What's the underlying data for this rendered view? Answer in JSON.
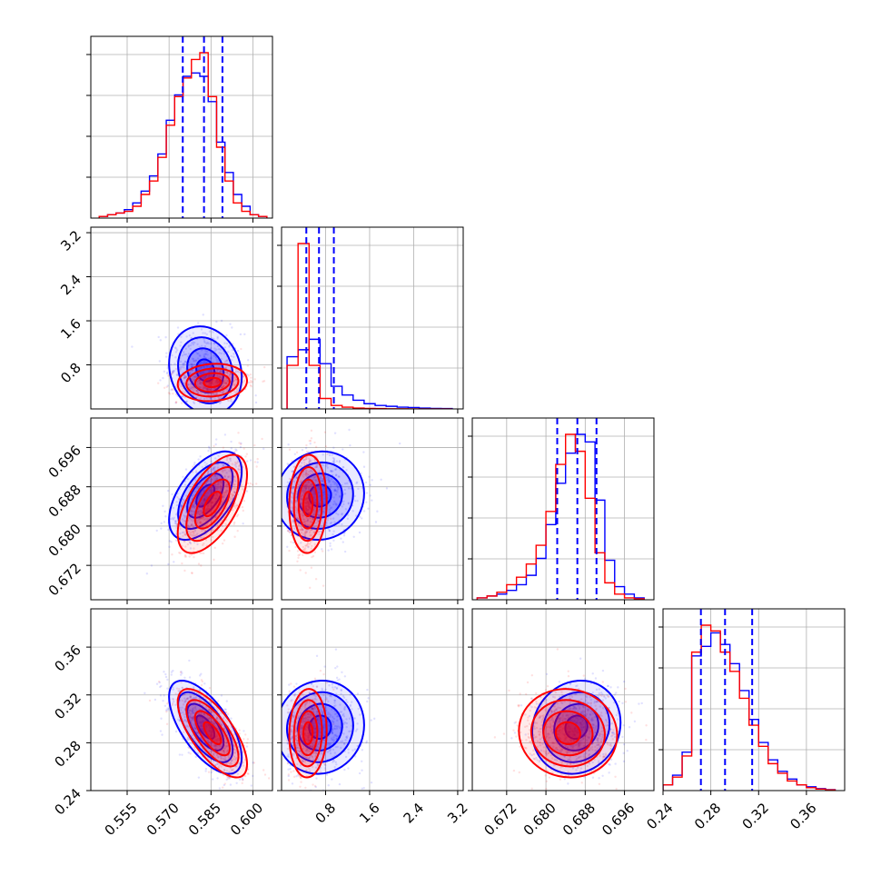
{
  "chart_data": {
    "type": "corner",
    "title": "",
    "parameters": [
      {
        "ticks": [
          0.555,
          0.57,
          0.585,
          0.6
        ],
        "tick_labels": [
          "0.555",
          "0.570",
          "0.585",
          "0.600"
        ],
        "range": [
          0.542,
          0.607
        ]
      },
      {
        "ticks": [
          0.8,
          1.6,
          2.4,
          3.2
        ],
        "tick_labels": [
          "0.8",
          "1.6",
          "2.4",
          "3.2"
        ],
        "range": [
          0.0,
          3.3
        ]
      },
      {
        "ticks": [
          0.672,
          0.68,
          0.688,
          0.696
        ],
        "tick_labels": [
          "0.672",
          "0.680",
          "0.688",
          "0.696"
        ],
        "range": [
          0.665,
          0.702
        ]
      },
      {
        "ticks": [
          0.24,
          0.28,
          0.32,
          0.36
        ],
        "tick_labels": [
          "0.24",
          "0.28",
          "0.32",
          "0.36"
        ],
        "range": [
          0.24,
          0.392
        ]
      }
    ],
    "quantile_lines": {
      "color": "#0000ff",
      "style": "dashed",
      "values": [
        [
          0.5749,
          0.5825,
          0.5891
        ],
        [
          0.45,
          0.68,
          0.95
        ],
        [
          0.6823,
          0.6864,
          0.6903
        ],
        [
          0.2717,
          0.2919,
          0.3146
        ]
      ]
    },
    "series": [
      {
        "color": "#0000ff",
        "histograms": [
          {
            "edges": [
              0.545,
              0.548,
              0.551,
              0.554,
              0.557,
              0.56,
              0.563,
              0.566,
              0.569,
              0.572,
              0.575,
              0.578,
              0.581,
              0.584,
              0.587,
              0.59,
              0.593,
              0.596,
              0.599,
              0.602,
              0.605
            ],
            "counts": [
              0.01,
              0.02,
              0.03,
              0.05,
              0.09,
              0.16,
              0.25,
              0.38,
              0.58,
              0.73,
              0.84,
              0.86,
              0.84,
              0.69,
              0.45,
              0.27,
              0.14,
              0.07,
              0.02,
              0.01
            ]
          },
          {
            "edges": [
              0.1,
              0.3,
              0.5,
              0.7,
              0.9,
              1.1,
              1.3,
              1.5,
              1.7,
              1.9,
              2.1,
              2.3,
              2.5,
              2.7,
              2.9,
              3.1
            ],
            "counts": [
              0.3,
              0.34,
              0.4,
              0.26,
              0.13,
              0.08,
              0.05,
              0.03,
              0.02,
              0.015,
              0.01,
              0.008,
              0.005,
              0.003,
              0.002
            ]
          },
          {
            "edges": [
              0.666,
              0.668,
              0.67,
              0.672,
              0.674,
              0.676,
              0.678,
              0.68,
              0.682,
              0.684,
              0.686,
              0.688,
              0.69,
              0.692,
              0.694,
              0.696,
              0.698,
              0.7
            ],
            "counts": [
              0.01,
              0.02,
              0.03,
              0.05,
              0.08,
              0.13,
              0.22,
              0.4,
              0.62,
              0.78,
              0.88,
              0.84,
              0.53,
              0.21,
              0.07,
              0.03,
              0.01
            ]
          },
          {
            "edges": [
              0.24,
              0.248,
              0.256,
              0.264,
              0.272,
              0.28,
              0.288,
              0.296,
              0.304,
              0.312,
              0.32,
              0.328,
              0.336,
              0.344,
              0.352,
              0.36,
              0.368,
              0.376,
              0.384
            ],
            "counts": [
              0.03,
              0.08,
              0.2,
              0.7,
              0.75,
              0.82,
              0.76,
              0.66,
              0.52,
              0.37,
              0.25,
              0.16,
              0.1,
              0.06,
              0.03,
              0.02,
              0.01,
              0.005
            ]
          }
        ],
        "centers": [
          [
            0.583,
            0.7,
            0.6862,
            0.293
          ]
        ],
        "spreads": [
          [
            0.0065,
            0.4,
            0.0045,
            0.0195
          ]
        ],
        "correlations": {
          "1-0": -0.15,
          "2-0": 0.55,
          "2-1": 0.05,
          "3-0": -0.65,
          "3-1": 0.05,
          "3-2": 0.1
        }
      },
      {
        "color": "#ff0000",
        "histograms": [
          {
            "edges": [
              0.545,
              0.548,
              0.551,
              0.554,
              0.557,
              0.56,
              0.563,
              0.566,
              0.569,
              0.572,
              0.575,
              0.578,
              0.581,
              0.584,
              0.587,
              0.59,
              0.593,
              0.596,
              0.599,
              0.602,
              0.605
            ],
            "counts": [
              0.01,
              0.02,
              0.03,
              0.04,
              0.07,
              0.14,
              0.22,
              0.36,
              0.55,
              0.72,
              0.83,
              0.94,
              0.98,
              0.72,
              0.42,
              0.22,
              0.09,
              0.04,
              0.02,
              0.01
            ]
          },
          {
            "edges": [
              0.1,
              0.3,
              0.5,
              0.7,
              0.9,
              1.1,
              1.3,
              1.5,
              1.7,
              1.9,
              2.1,
              2.3,
              2.5,
              2.7,
              2.9,
              3.1
            ],
            "counts": [
              0.25,
              0.95,
              0.25,
              0.06,
              0.02,
              0.01,
              0.005,
              0.003,
              0.002,
              0.001,
              0.001,
              0.0,
              0.0,
              0.0,
              0.0
            ]
          },
          {
            "edges": [
              0.666,
              0.668,
              0.67,
              0.672,
              0.674,
              0.676,
              0.678,
              0.68,
              0.682,
              0.684,
              0.686,
              0.688,
              0.69,
              0.692,
              0.694,
              0.696,
              0.698,
              0.7
            ],
            "counts": [
              0.01,
              0.02,
              0.04,
              0.08,
              0.12,
              0.19,
              0.29,
              0.47,
              0.72,
              0.88,
              0.79,
              0.54,
              0.25,
              0.09,
              0.03,
              0.01,
              0.005
            ]
          },
          {
            "edges": [
              0.24,
              0.248,
              0.256,
              0.264,
              0.272,
              0.28,
              0.288,
              0.296,
              0.304,
              0.312,
              0.32,
              0.328,
              0.336,
              0.344,
              0.352,
              0.36,
              0.368,
              0.376,
              0.384
            ],
            "counts": [
              0.03,
              0.07,
              0.18,
              0.72,
              0.86,
              0.83,
              0.72,
              0.62,
              0.48,
              0.34,
              0.23,
              0.14,
              0.09,
              0.05,
              0.03,
              0.015,
              0.008,
              0.004
            ]
          }
        ],
        "centers": [
          [
            0.5855,
            0.48,
            0.6845,
            0.288
          ]
        ],
        "spreads": [
          [
            0.0062,
            0.17,
            0.005,
            0.0185
          ]
        ],
        "correlations": {
          "1-0": 0.1,
          "2-0": 0.6,
          "2-1": 0.05,
          "3-0": -0.7,
          "3-1": 0.05,
          "3-2": -0.05
        }
      }
    ],
    "grid": true,
    "legend": "none"
  }
}
